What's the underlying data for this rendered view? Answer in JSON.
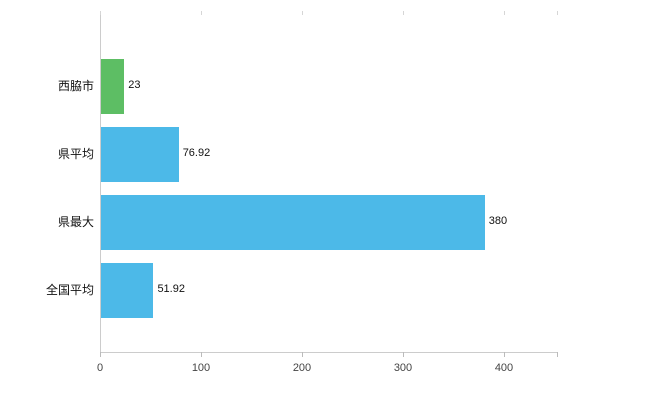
{
  "chart_data": {
    "type": "bar",
    "orientation": "horizontal",
    "title": "",
    "xlabel": "",
    "ylabel": "",
    "categories": [
      "西脇市",
      "県平均",
      "県最大",
      "全国平均"
    ],
    "values": [
      23,
      76.92,
      380,
      51.92
    ],
    "value_labels": [
      "23",
      "76.92",
      "380",
      "51.92"
    ],
    "bar_colors": [
      "#5dbe64",
      "#4cb9e8",
      "#4cb9e8",
      "#4cb9e8"
    ],
    "xticks": [
      0,
      100,
      200,
      300,
      400
    ],
    "xtick_labels": [
      "0",
      "100",
      "200",
      "300",
      "400"
    ],
    "xlim": [
      0,
      452
    ],
    "grid": false,
    "legend": false,
    "axis_color": "#cccccc",
    "tick_label_color": "#444444",
    "category_label_color": "#111111",
    "background_color": "#ffffff"
  }
}
